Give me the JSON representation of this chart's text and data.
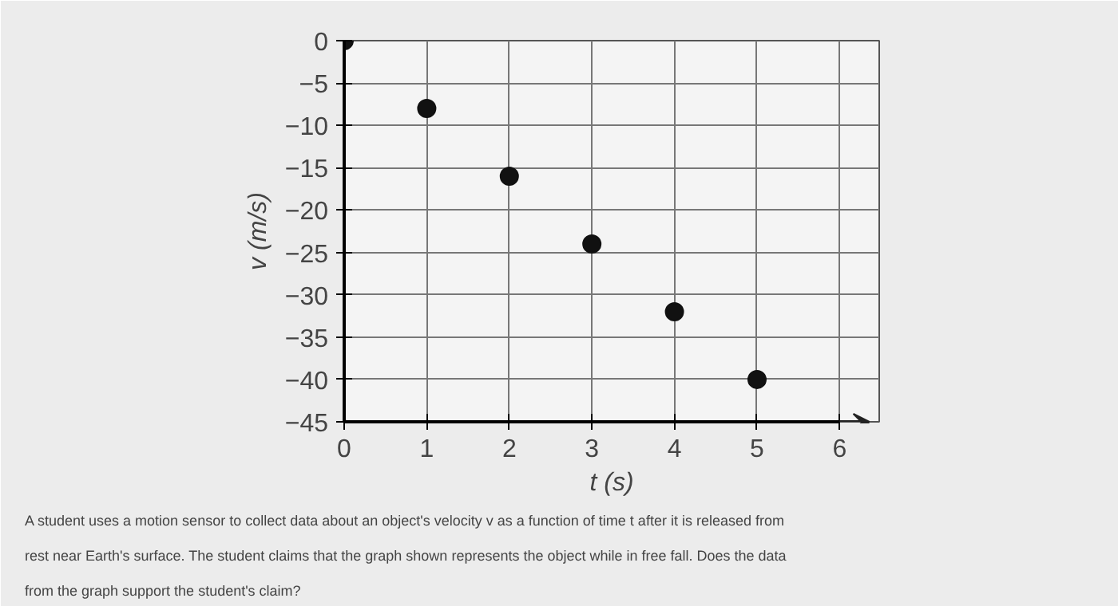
{
  "chart_data": {
    "type": "scatter",
    "xlabel": "t (s)",
    "ylabel": "v (m/s)",
    "x": [
      0,
      1,
      2,
      3,
      4,
      5
    ],
    "series": [
      {
        "color": "#111111",
        "values": [
          0,
          -8,
          -16,
          -24,
          -32,
          -40
        ]
      }
    ],
    "xlim": [
      0,
      6
    ],
    "ylim": [
      -45,
      0
    ],
    "xticks": [
      0,
      1,
      2,
      3,
      4,
      5,
      6
    ],
    "yticks": [
      0,
      -5,
      -10,
      -15,
      -20,
      -25,
      -30,
      -35,
      -40,
      -45
    ],
    "grid": true,
    "marker": "circle",
    "annotations": [
      "A student uses a motion sensor to collect data about an object's velocity v as a function of time t after it is released from rest near Earth's surface. The student claims that the graph shown represents the object while in free fall. Does the data from the graph support the student's claim?"
    ]
  }
}
